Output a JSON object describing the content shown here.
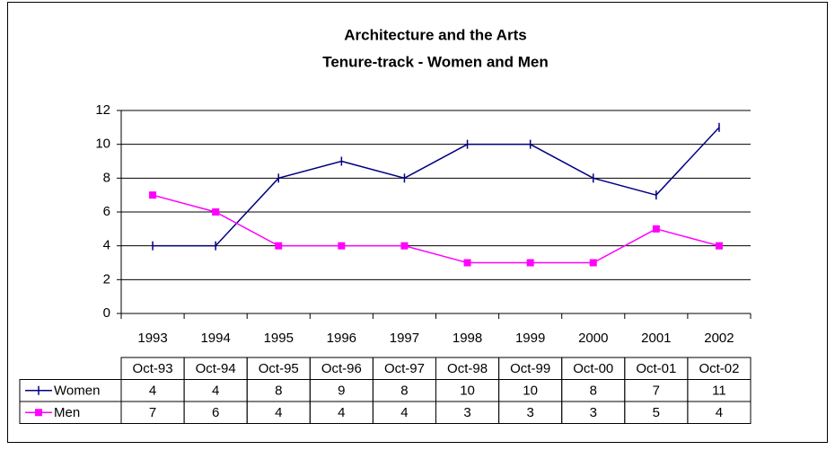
{
  "chart_data": {
    "type": "line",
    "title": [
      "Architecture and the Arts",
      "Tenure-track - Women and Men"
    ],
    "categories": [
      "1993",
      "1994",
      "1995",
      "1996",
      "1997",
      "1998",
      "1999",
      "2000",
      "2001",
      "2002"
    ],
    "table_header": [
      "Oct-93",
      "Oct-94",
      "Oct-95",
      "Oct-96",
      "Oct-97",
      "Oct-98",
      "Oct-99",
      "Oct-00",
      "Oct-01",
      "Oct-02"
    ],
    "series": [
      {
        "name": "Women",
        "color": "#000080",
        "marker": "plus",
        "values": [
          4,
          4,
          8,
          9,
          8,
          10,
          10,
          8,
          7,
          11
        ]
      },
      {
        "name": "Men",
        "color": "#ff00ff",
        "marker": "square",
        "values": [
          7,
          6,
          4,
          4,
          4,
          3,
          3,
          3,
          5,
          4
        ]
      }
    ],
    "ylim": [
      0,
      12
    ],
    "yticks": [
      0,
      2,
      4,
      6,
      8,
      10,
      12
    ],
    "grid": true
  }
}
